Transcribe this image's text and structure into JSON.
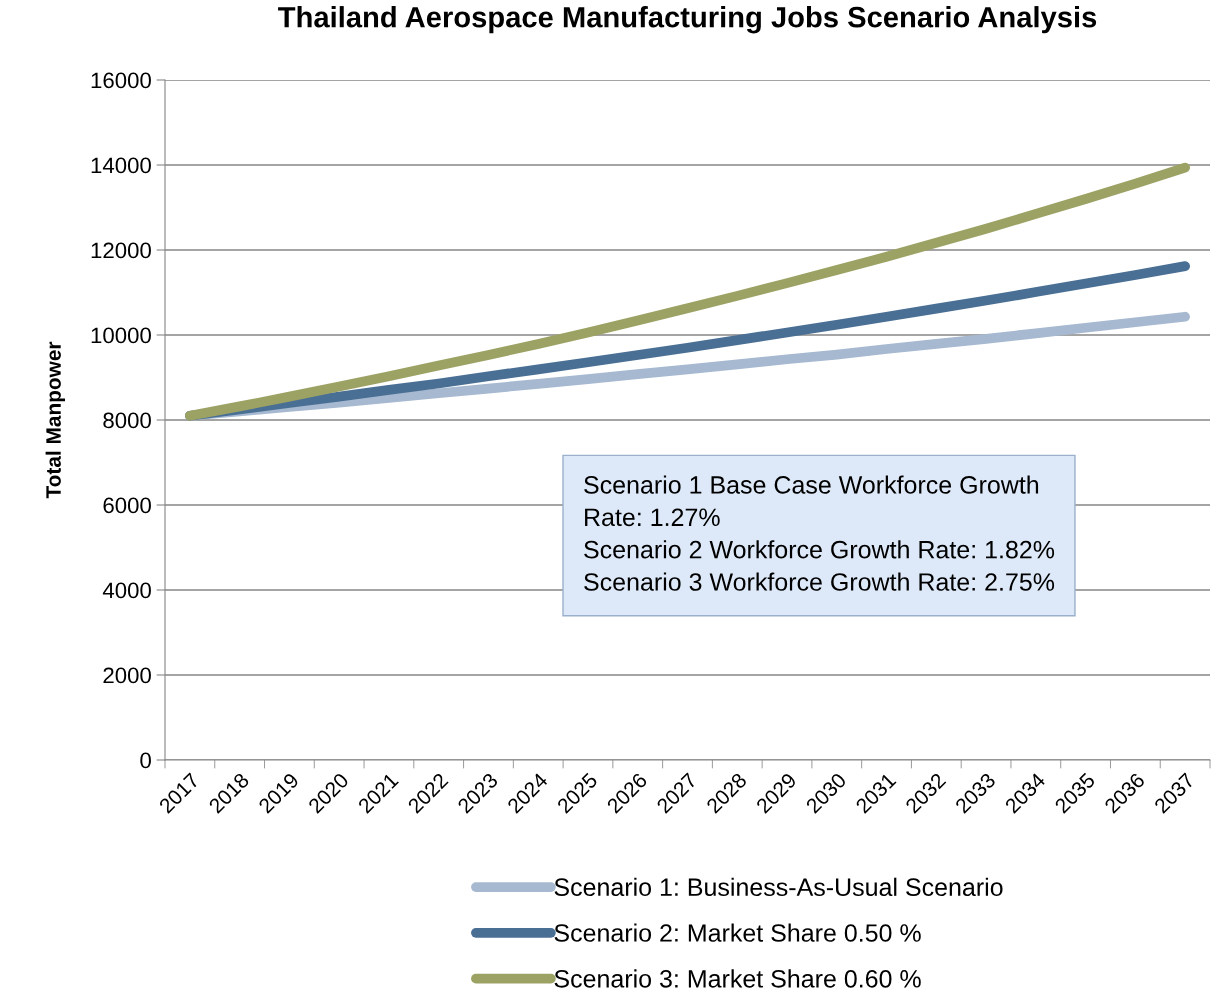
{
  "chart_data": {
    "type": "line",
    "title": "Thailand Aerospace Manufacturing Jobs Scenario Analysis",
    "ylabel": "Total Manpower",
    "categories": [
      "2017",
      "2018",
      "2019",
      "2020",
      "2021",
      "2022",
      "2023",
      "2024",
      "2025",
      "2026",
      "2027",
      "2028",
      "2029",
      "2030",
      "2031",
      "2032",
      "2033",
      "2034",
      "2035",
      "2036",
      "2037"
    ],
    "series": [
      {
        "name": "Scenario 1: Business-As-Usual Scenario",
        "color": "#a6b9d0",
        "values": [
          8100,
          8200,
          8310,
          8410,
          8520,
          8630,
          8740,
          8850,
          8960,
          9080,
          9190,
          9310,
          9430,
          9540,
          9670,
          9790,
          9910,
          10040,
          10170,
          10300,
          10430
        ]
      },
      {
        "name": "Scenario 2: Market Share 0.50 %",
        "color": "#4a6f94",
        "values": [
          8100,
          8250,
          8400,
          8550,
          8710,
          8860,
          9030,
          9190,
          9360,
          9530,
          9700,
          9880,
          10060,
          10240,
          10430,
          10620,
          10810,
          11010,
          11210,
          11410,
          11620
        ]
      },
      {
        "name": "Scenario 3: Market Share 0.60 %",
        "color": "#9ca263",
        "values": [
          8100,
          8320,
          8550,
          8790,
          9030,
          9280,
          9530,
          9790,
          10060,
          10340,
          10630,
          10920,
          11220,
          11530,
          11840,
          12170,
          12500,
          12850,
          13200,
          13560,
          13940
        ]
      }
    ],
    "annotations": [
      "Scenario 1 Base Case Workforce Growth\nRate: 1.27%\nScenario 2 Workforce Growth Rate: 1.82%\nScenario 3 Workforce Growth Rate: 2.75%"
    ],
    "ylim": [
      0,
      16000
    ],
    "yticks": [
      0,
      2000,
      4000,
      6000,
      8000,
      10000,
      12000,
      14000,
      16000
    ],
    "grid": "y",
    "legend": "bottom",
    "marker": "none",
    "line_style": "solid"
  }
}
